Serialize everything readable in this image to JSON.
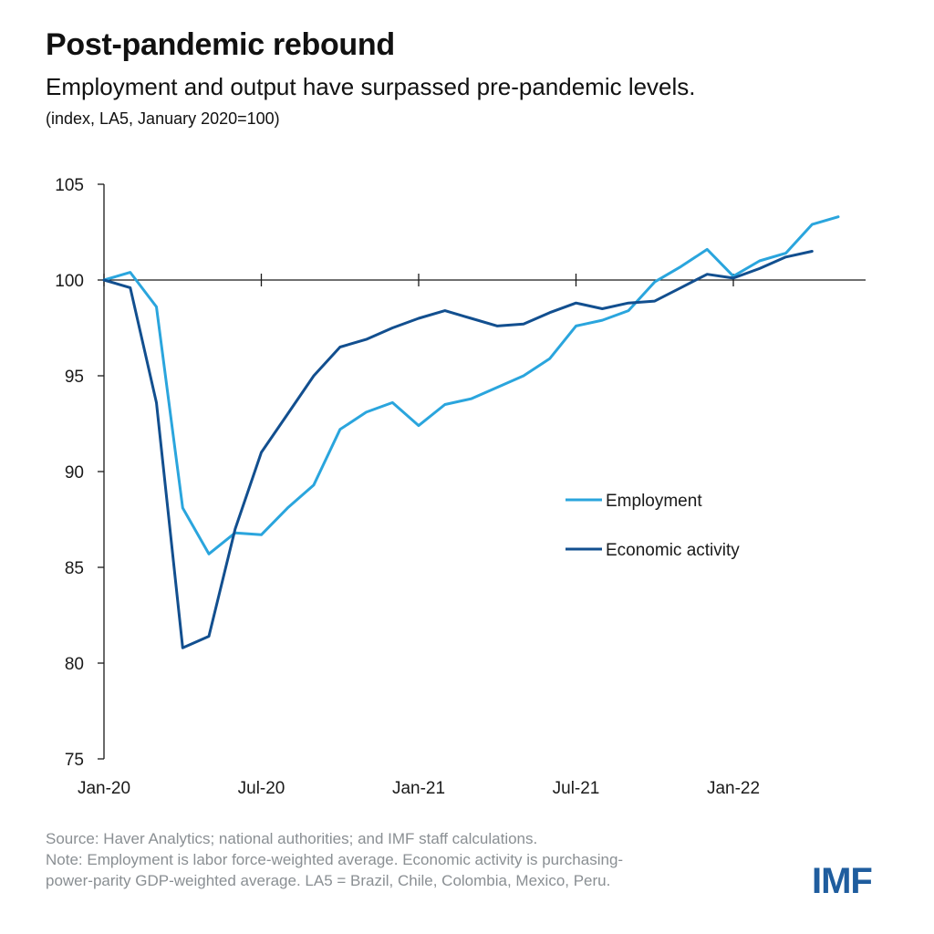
{
  "header": {
    "title": "Post-pandemic rebound",
    "subtitle": "Employment and output have surpassed pre-pandemic levels.",
    "units": "(index, LA5, January 2020=100)"
  },
  "chart_data": {
    "type": "line",
    "x": [
      "2020-01",
      "2020-02",
      "2020-03",
      "2020-04",
      "2020-05",
      "2020-06",
      "2020-07",
      "2020-08",
      "2020-09",
      "2020-10",
      "2020-11",
      "2020-12",
      "2021-01",
      "2021-02",
      "2021-03",
      "2021-04",
      "2021-05",
      "2021-06",
      "2021-07",
      "2021-08",
      "2021-09",
      "2021-10",
      "2021-11",
      "2021-12",
      "2022-01",
      "2022-02",
      "2022-03",
      "2022-04",
      "2022-05"
    ],
    "xticks": [
      {
        "index": 0,
        "label": "Jan-20"
      },
      {
        "index": 6,
        "label": "Jul-20"
      },
      {
        "index": 12,
        "label": "Jan-21"
      },
      {
        "index": 18,
        "label": "Jul-21"
      },
      {
        "index": 24,
        "label": "Jan-22"
      }
    ],
    "yticks": [
      75,
      80,
      85,
      90,
      95,
      100,
      105
    ],
    "ylim": [
      75,
      105
    ],
    "reference_line": 100,
    "series": [
      {
        "name": "Employment",
        "color": "#2aa5dd",
        "values": [
          100,
          100.4,
          98.6,
          88.1,
          85.7,
          86.8,
          86.7,
          88.1,
          89.3,
          92.2,
          93.1,
          93.6,
          92.4,
          93.5,
          93.8,
          94.4,
          95.0,
          95.9,
          97.6,
          97.9,
          98.4,
          99.9,
          100.7,
          101.6,
          100.2,
          101.0,
          101.4,
          102.9,
          103.3
        ]
      },
      {
        "name": "Economic activity",
        "color": "#124f8f",
        "values": [
          100,
          99.6,
          93.6,
          80.8,
          81.4,
          87.0,
          91.0,
          93.0,
          95.0,
          96.5,
          96.9,
          97.5,
          98.0,
          98.4,
          98.0,
          97.6,
          97.7,
          98.3,
          98.8,
          98.5,
          98.8,
          98.9,
          99.6,
          100.3,
          100.1,
          100.6,
          101.2,
          101.5,
          null
        ]
      }
    ],
    "legend_position": "center-right"
  },
  "footer": {
    "source": "Source: Haver Analytics; national authorities; and IMF staff calculations.",
    "note_line1": "Note: Employment is labor force-weighted average. Economic activity is purchasing-",
    "note_line2": "power-parity GDP-weighted average. LA5 = Brazil, Chile, Colombia, Mexico, Peru."
  },
  "logo": {
    "text": "IMF",
    "color": "#1f5d9e"
  }
}
